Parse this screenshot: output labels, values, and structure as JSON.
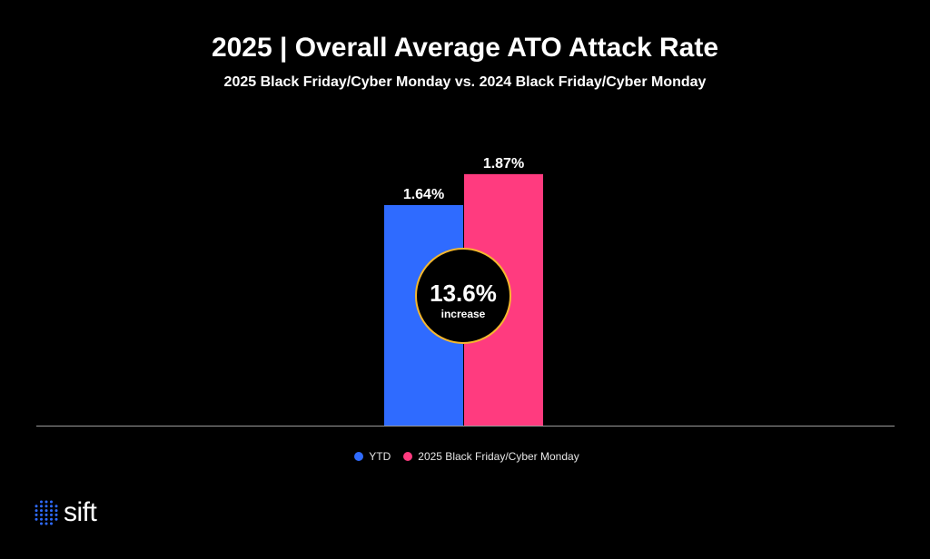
{
  "chart_data": {
    "type": "bar",
    "title": "2025 | Overall Average ATO Attack Rate",
    "subtitle": "2025 Black Friday/Cyber Monday vs. 2024 Black Friday/Cyber Monday",
    "series": [
      {
        "name": "YTD",
        "value": 1.64,
        "label": "1.64%",
        "color": "#2f6bff"
      },
      {
        "name": "2025 Black Friday/Cyber Monday",
        "value": 1.87,
        "label": "1.87%",
        "color": "#ff3b7f"
      }
    ],
    "ylim": [
      0,
      2.0
    ],
    "grid": false,
    "legend": "bottom",
    "annotation": {
      "value": "13.6%",
      "text": "increase",
      "border_color": "#f5b82e"
    }
  },
  "brand": {
    "logo_text": "sift",
    "logo_color": "#2f6bff"
  }
}
